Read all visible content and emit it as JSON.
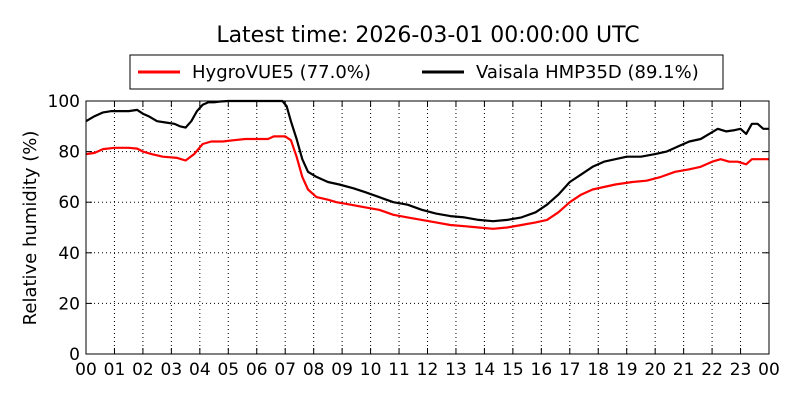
{
  "chart_data": {
    "type": "line",
    "title": "Latest time: 2026-03-01 00:00:00 UTC",
    "xlabel": "",
    "ylabel": "Relative humidity (%)",
    "xlim": [
      0,
      24
    ],
    "ylim": [
      0,
      100
    ],
    "x_tick_labels": [
      "00",
      "01",
      "02",
      "03",
      "04",
      "05",
      "06",
      "07",
      "08",
      "09",
      "10",
      "11",
      "12",
      "13",
      "14",
      "15",
      "16",
      "17",
      "18",
      "19",
      "20",
      "21",
      "22",
      "23",
      "00"
    ],
    "y_ticks": [
      0,
      20,
      40,
      60,
      80,
      100
    ],
    "grid": true,
    "legend_position": "top-center",
    "series": [
      {
        "name": "HygroVUE5 (77.0%)",
        "color": "#ff0000",
        "points": [
          [
            0,
            79
          ],
          [
            0.3,
            79.5
          ],
          [
            0.6,
            81
          ],
          [
            1,
            81.5
          ],
          [
            1.5,
            81.5
          ],
          [
            1.8,
            81.2
          ],
          [
            2,
            80
          ],
          [
            2.3,
            79
          ],
          [
            2.7,
            78
          ],
          [
            3.2,
            77.5
          ],
          [
            3.5,
            76.5
          ],
          [
            3.8,
            79
          ],
          [
            4.1,
            83
          ],
          [
            4.4,
            84
          ],
          [
            4.8,
            84
          ],
          [
            5.2,
            84.5
          ],
          [
            5.6,
            85
          ],
          [
            6,
            85
          ],
          [
            6.4,
            85
          ],
          [
            6.6,
            86
          ],
          [
            7,
            86
          ],
          [
            7.2,
            84.5
          ],
          [
            7.4,
            78
          ],
          [
            7.6,
            70
          ],
          [
            7.8,
            65
          ],
          [
            8.1,
            62
          ],
          [
            8.5,
            61
          ],
          [
            8.8,
            60
          ],
          [
            9.3,
            59
          ],
          [
            9.8,
            58
          ],
          [
            10.3,
            57
          ],
          [
            10.8,
            55
          ],
          [
            11.3,
            54
          ],
          [
            11.8,
            53
          ],
          [
            12.3,
            52
          ],
          [
            12.8,
            51
          ],
          [
            13.3,
            50.5
          ],
          [
            13.8,
            50
          ],
          [
            14.3,
            49.5
          ],
          [
            14.8,
            50
          ],
          [
            15.3,
            51
          ],
          [
            15.8,
            52
          ],
          [
            16.2,
            53
          ],
          [
            16.6,
            56
          ],
          [
            17,
            60
          ],
          [
            17.4,
            63
          ],
          [
            17.8,
            65
          ],
          [
            18.2,
            66
          ],
          [
            18.6,
            67
          ],
          [
            19.2,
            68
          ],
          [
            19.7,
            68.5
          ],
          [
            20.2,
            70
          ],
          [
            20.7,
            72
          ],
          [
            21.2,
            73
          ],
          [
            21.6,
            74
          ],
          [
            22,
            76
          ],
          [
            22.3,
            77
          ],
          [
            22.6,
            76
          ],
          [
            22.9,
            76
          ],
          [
            23.2,
            75
          ],
          [
            23.4,
            77
          ],
          [
            23.7,
            77
          ],
          [
            24,
            77
          ]
        ]
      },
      {
        "name": "Vaisala HMP35D (89.1%)",
        "color": "#000000",
        "points": [
          [
            0,
            92
          ],
          [
            0.3,
            94
          ],
          [
            0.6,
            95.5
          ],
          [
            0.9,
            96
          ],
          [
            1.2,
            96
          ],
          [
            1.5,
            96
          ],
          [
            1.8,
            96.5
          ],
          [
            2,
            95
          ],
          [
            2.2,
            94
          ],
          [
            2.5,
            92
          ],
          [
            2.8,
            91.5
          ],
          [
            3.1,
            91
          ],
          [
            3.3,
            90
          ],
          [
            3.5,
            89.5
          ],
          [
            3.7,
            92
          ],
          [
            3.9,
            96
          ],
          [
            4.1,
            98.5
          ],
          [
            4.3,
            99.5
          ],
          [
            4.5,
            99.5
          ],
          [
            4.7,
            99.8
          ],
          [
            5,
            100
          ],
          [
            5.4,
            100
          ],
          [
            6,
            100
          ],
          [
            6.6,
            100
          ],
          [
            6.9,
            100
          ],
          [
            7.05,
            98
          ],
          [
            7.2,
            92
          ],
          [
            7.4,
            85
          ],
          [
            7.6,
            77
          ],
          [
            7.8,
            72
          ],
          [
            8.1,
            70
          ],
          [
            8.5,
            68
          ],
          [
            8.9,
            67
          ],
          [
            9.4,
            65.5
          ],
          [
            9.8,
            64
          ],
          [
            10.3,
            62
          ],
          [
            10.8,
            60
          ],
          [
            11.3,
            59
          ],
          [
            11.8,
            57
          ],
          [
            12.3,
            55.5
          ],
          [
            12.8,
            54.5
          ],
          [
            13.3,
            54
          ],
          [
            13.8,
            53
          ],
          [
            14.3,
            52.5
          ],
          [
            14.8,
            53
          ],
          [
            15.3,
            54
          ],
          [
            15.8,
            56
          ],
          [
            16.2,
            59
          ],
          [
            16.6,
            63
          ],
          [
            17,
            68
          ],
          [
            17.4,
            71
          ],
          [
            17.8,
            74
          ],
          [
            18.2,
            76
          ],
          [
            18.6,
            77
          ],
          [
            19,
            78
          ],
          [
            19.5,
            78
          ],
          [
            20,
            79
          ],
          [
            20.4,
            80
          ],
          [
            20.8,
            82
          ],
          [
            21.2,
            84
          ],
          [
            21.6,
            85
          ],
          [
            21.9,
            87
          ],
          [
            22.2,
            89
          ],
          [
            22.5,
            88
          ],
          [
            22.8,
            88.5
          ],
          [
            23,
            89
          ],
          [
            23.2,
            87
          ],
          [
            23.4,
            91
          ],
          [
            23.6,
            91
          ],
          [
            23.8,
            89
          ],
          [
            24,
            89
          ]
        ]
      }
    ]
  }
}
